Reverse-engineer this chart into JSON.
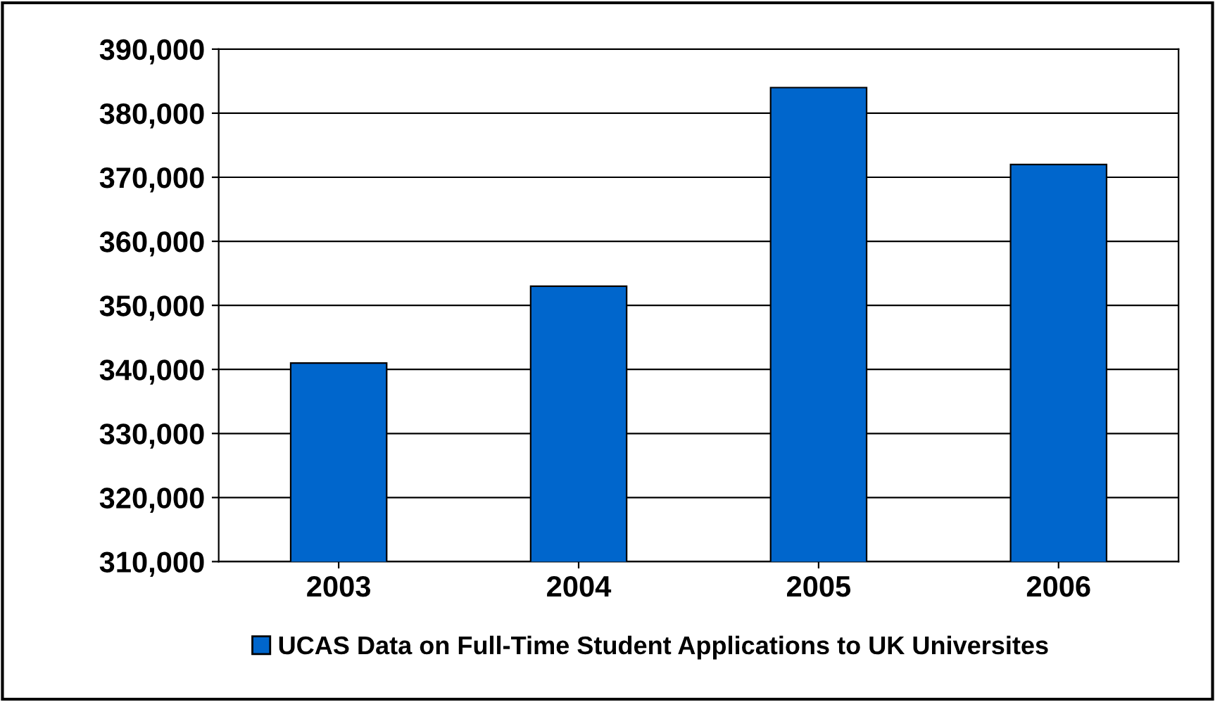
{
  "chart_data": {
    "type": "bar",
    "categories": [
      "2003",
      "2004",
      "2005",
      "2006"
    ],
    "series": [
      {
        "name": "UCAS Data on Full-Time Student Applications to UK Universites",
        "color": "#0066cc",
        "values": [
          341000,
          353000,
          384000,
          372000
        ]
      }
    ],
    "ylim": [
      310000,
      390000
    ],
    "yticks": [
      {
        "value": 310000,
        "label": "310,000"
      },
      {
        "value": 320000,
        "label": "320,000"
      },
      {
        "value": 330000,
        "label": "330,000"
      },
      {
        "value": 340000,
        "label": "340,000"
      },
      {
        "value": 350000,
        "label": "350,000"
      },
      {
        "value": 360000,
        "label": "360,000"
      },
      {
        "value": 370000,
        "label": "370,000"
      },
      {
        "value": 380000,
        "label": "380,000"
      },
      {
        "value": 390000,
        "label": "390,000"
      }
    ],
    "grid": "y",
    "legend": "bottom"
  }
}
